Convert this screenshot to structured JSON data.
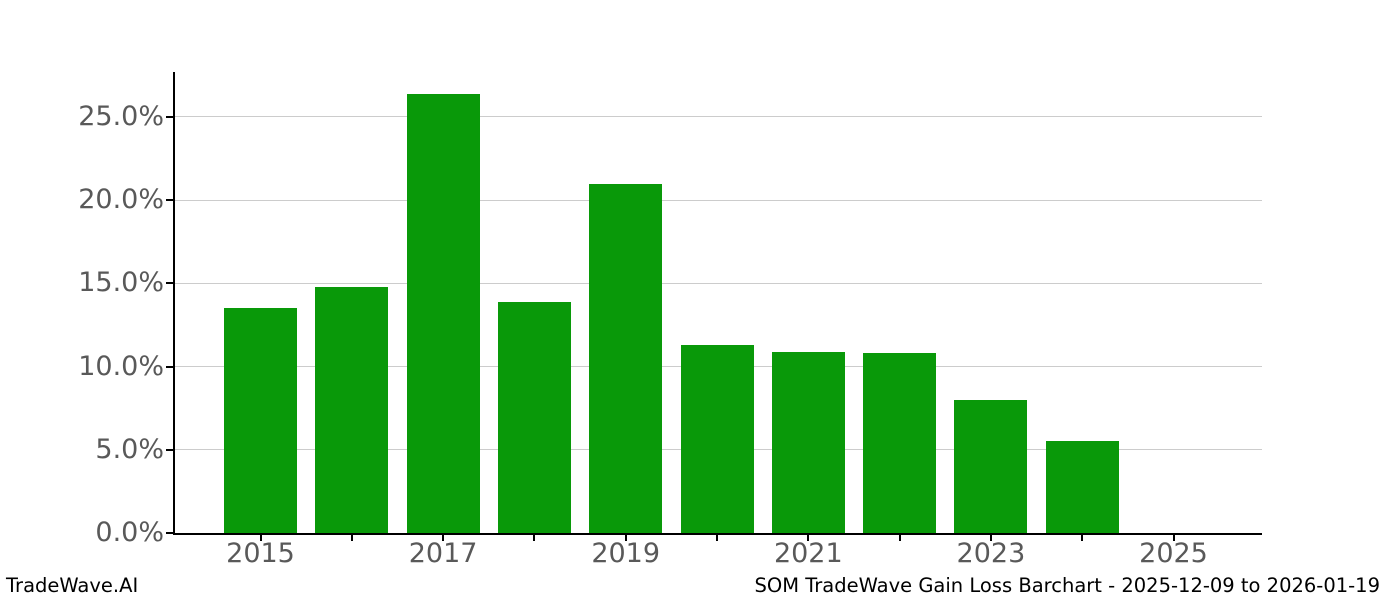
{
  "footer": {
    "left": "TradeWave.AI",
    "right": "SOM TradeWave Gain Loss Barchart - 2025-12-09 to 2026-01-19"
  },
  "chart_data": {
    "type": "bar",
    "title": "SOM TradeWave Gain Loss Barchart - 2025-12-09 to 2026-01-19",
    "watermark": "TradeWave.AI",
    "categories": [
      "2015",
      "2016",
      "2017",
      "2018",
      "2019",
      "2020",
      "2021",
      "2022",
      "2023",
      "2024",
      "2025"
    ],
    "values": [
      13.5,
      14.8,
      26.4,
      13.9,
      21.0,
      11.3,
      10.9,
      10.8,
      8.0,
      5.5,
      null
    ],
    "unit": "percent",
    "xlabel": "",
    "ylabel": "",
    "ylim": [
      0,
      27.7
    ],
    "ytick_values": [
      0,
      5,
      10,
      15,
      20,
      25
    ],
    "ytick_labels": [
      "0.0%",
      "5.0%",
      "10.0%",
      "15.0%",
      "20.0%",
      "25.0%"
    ],
    "xtick_labeled_years": [
      "2015",
      "2017",
      "2019",
      "2021",
      "2023",
      "2025"
    ],
    "grid": "horizontal",
    "legend": "none",
    "colors": {
      "bar": "#099909",
      "gridline": "#cccccc",
      "tick_label": "#595959",
      "axis_spine": "#000000",
      "footer_text": "#000000",
      "background": "#ffffff"
    }
  }
}
